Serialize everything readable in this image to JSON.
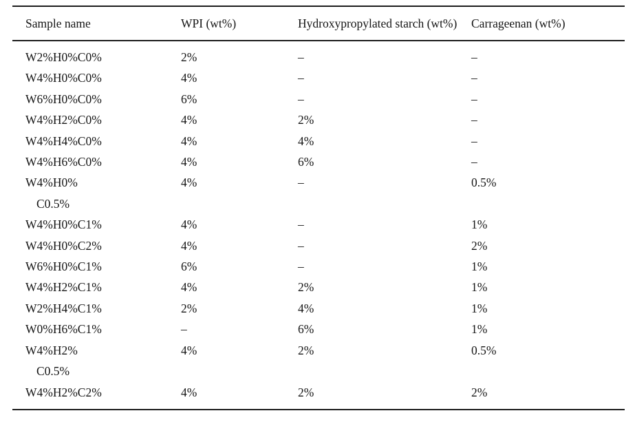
{
  "colors": {
    "background": "#ffffff",
    "text": "#151515",
    "rule": "#1c1c1c"
  },
  "table": {
    "columns": [
      "Sample name",
      "WPI (wt%)",
      "Hydroxypropylated starch (wt%)",
      "Carrageenan (wt%)"
    ],
    "rows": [
      [
        "W2%H0%C0%",
        "2%",
        "–",
        "–"
      ],
      [
        "W4%H0%C0%",
        "4%",
        "–",
        "–"
      ],
      [
        "W6%H0%C0%",
        "6%",
        "–",
        "–"
      ],
      [
        "W4%H2%C0%",
        "4%",
        "2%",
        "–"
      ],
      [
        "W4%H4%C0%",
        "4%",
        "4%",
        "–"
      ],
      [
        "W4%H6%C0%",
        "4%",
        "6%",
        "–"
      ],
      [
        [
          "W4%H0%",
          "C0.5%"
        ],
        "4%",
        "–",
        "0.5%"
      ],
      [
        "W4%H0%C1%",
        "4%",
        "–",
        "1%"
      ],
      [
        "W4%H0%C2%",
        "4%",
        "–",
        "2%"
      ],
      [
        "W6%H0%C1%",
        "6%",
        "–",
        "1%"
      ],
      [
        "W4%H2%C1%",
        "4%",
        "2%",
        "1%"
      ],
      [
        "W2%H4%C1%",
        "2%",
        "4%",
        "1%"
      ],
      [
        "W0%H6%C1%",
        "–",
        "6%",
        "1%"
      ],
      [
        [
          "W4%H2%",
          "C0.5%"
        ],
        "4%",
        "2%",
        "0.5%"
      ],
      [
        "W4%H2%C2%",
        "4%",
        "2%",
        "2%"
      ]
    ]
  }
}
